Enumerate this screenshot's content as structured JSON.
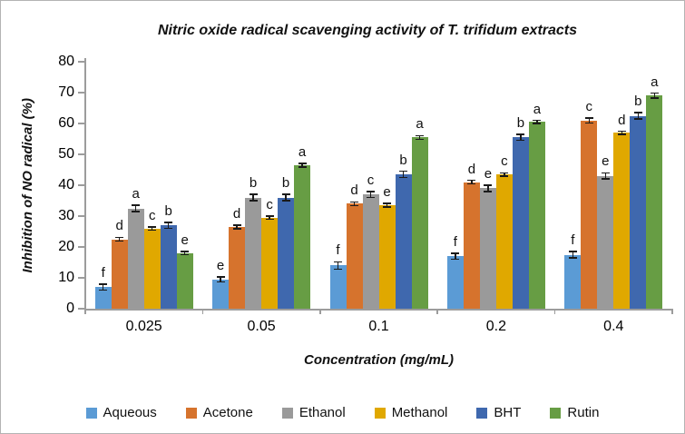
{
  "chart_data": {
    "type": "bar",
    "title": "Nitric oxide radical scavenging activity of T. trifidum extracts",
    "xlabel": "Concentration (mg/mL)",
    "ylabel": "Inhibition of NO radical (%)",
    "ylim": [
      0,
      80
    ],
    "yticks": [
      0,
      10,
      20,
      30,
      40,
      50,
      60,
      70,
      80
    ],
    "grid": false,
    "legend_position": "bottom",
    "error_bars": true,
    "categories": [
      "0.025",
      "0.05",
      "0.1",
      "0.2",
      "0.4"
    ],
    "series": [
      {
        "name": "Aqueous",
        "color": "#5B9BD5",
        "values": [
          7,
          9.5,
          14,
          17,
          17.5
        ],
        "errors": [
          1,
          0.8,
          1.2,
          1,
          1
        ],
        "letters": [
          "f",
          "e",
          "f",
          "f",
          "f"
        ]
      },
      {
        "name": "Acetone",
        "color": "#D6732D",
        "values": [
          22.5,
          26.5,
          34,
          41,
          61
        ],
        "errors": [
          0.6,
          0.6,
          0.6,
          0.6,
          0.8
        ],
        "letters": [
          "d",
          "d",
          "d",
          "d",
          "c"
        ]
      },
      {
        "name": "Ethanol",
        "color": "#9A9A9A",
        "values": [
          32.5,
          36,
          37,
          39,
          43
        ],
        "errors": [
          1,
          1,
          1,
          1,
          1
        ],
        "letters": [
          "a",
          "b",
          "c",
          "e",
          "e"
        ]
      },
      {
        "name": "Methanol",
        "color": "#E0A800",
        "values": [
          26,
          29.5,
          33.5,
          43.5,
          57
        ],
        "errors": [
          0.5,
          0.5,
          0.6,
          0.5,
          0.5
        ],
        "letters": [
          "c",
          "c",
          "e",
          "c",
          "d"
        ]
      },
      {
        "name": "BHT",
        "color": "#3F68AE",
        "values": [
          27,
          36,
          43.5,
          55.5,
          62.5
        ],
        "errors": [
          1,
          1,
          1,
          1,
          1
        ],
        "letters": [
          "b",
          "b",
          "b",
          "b",
          "b"
        ]
      },
      {
        "name": "Rutin",
        "color": "#679D44",
        "values": [
          18,
          46.5,
          55.5,
          60.5,
          69
        ],
        "errors": [
          0.5,
          0.6,
          0.6,
          0.5,
          0.8
        ],
        "letters": [
          "e",
          "a",
          "a",
          "a",
          "a"
        ]
      }
    ]
  },
  "style": {
    "axis_color": "#9c9c9c",
    "error_bar_color": "#1a1a1a",
    "figure_border_color": "#b3b3b3"
  }
}
